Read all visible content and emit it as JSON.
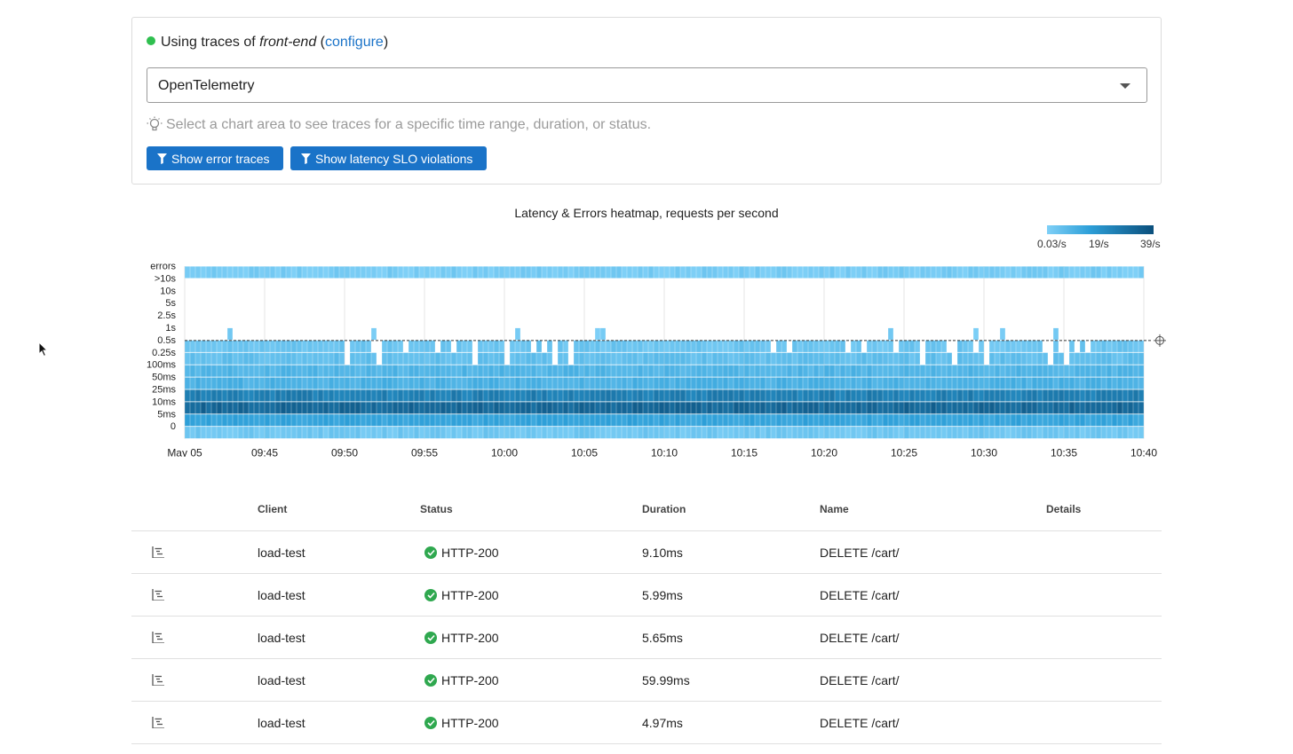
{
  "header": {
    "prefix": "Using traces of",
    "service": "front-end",
    "configure_label": "configure",
    "status_color": "#2fbf4f"
  },
  "select": {
    "value": "OpenTelemetry"
  },
  "hint": {
    "text": "Select a chart area to see traces for a specific time range, duration, or status."
  },
  "buttons": {
    "error_traces": "Show error traces",
    "latency_slo": "Show latency SLO violations"
  },
  "legend": {
    "min": "0.03/s",
    "mid": "19/s",
    "max": "39/s"
  },
  "chart_data": {
    "type": "heatmap",
    "title": "Latency & Errors heatmap, requests per second",
    "y_categories": [
      "errors",
      ">10s",
      "10s",
      "5s",
      "2.5s",
      "1s",
      "0.5s",
      "0.25s",
      "100ms",
      "50ms",
      "25ms",
      "10ms",
      "5ms",
      "0"
    ],
    "x_ticks": [
      "May 05",
      "09:45",
      "09:50",
      "09:55",
      "10:00",
      "10:05",
      "10:10",
      "10:15",
      "10:20",
      "10:25",
      "10:30",
      "10:35",
      "10:40"
    ],
    "slo_threshold": "0.5s",
    "color_scale": [
      "#7fd0f7",
      "#0b4f7c"
    ],
    "value_range": [
      0.03,
      39
    ]
  },
  "table": {
    "columns": [
      "Client",
      "Status",
      "Duration",
      "Name",
      "Details"
    ],
    "rows": [
      {
        "client": "load-test",
        "status": "HTTP-200",
        "duration": "9.10ms",
        "name": "DELETE /cart/",
        "details": ""
      },
      {
        "client": "load-test",
        "status": "HTTP-200",
        "duration": "5.99ms",
        "name": "DELETE /cart/",
        "details": ""
      },
      {
        "client": "load-test",
        "status": "HTTP-200",
        "duration": "5.65ms",
        "name": "DELETE /cart/",
        "details": ""
      },
      {
        "client": "load-test",
        "status": "HTTP-200",
        "duration": "59.99ms",
        "name": "DELETE /cart/",
        "details": ""
      },
      {
        "client": "load-test",
        "status": "HTTP-200",
        "duration": "4.97ms",
        "name": "DELETE /cart/",
        "details": ""
      }
    ]
  }
}
